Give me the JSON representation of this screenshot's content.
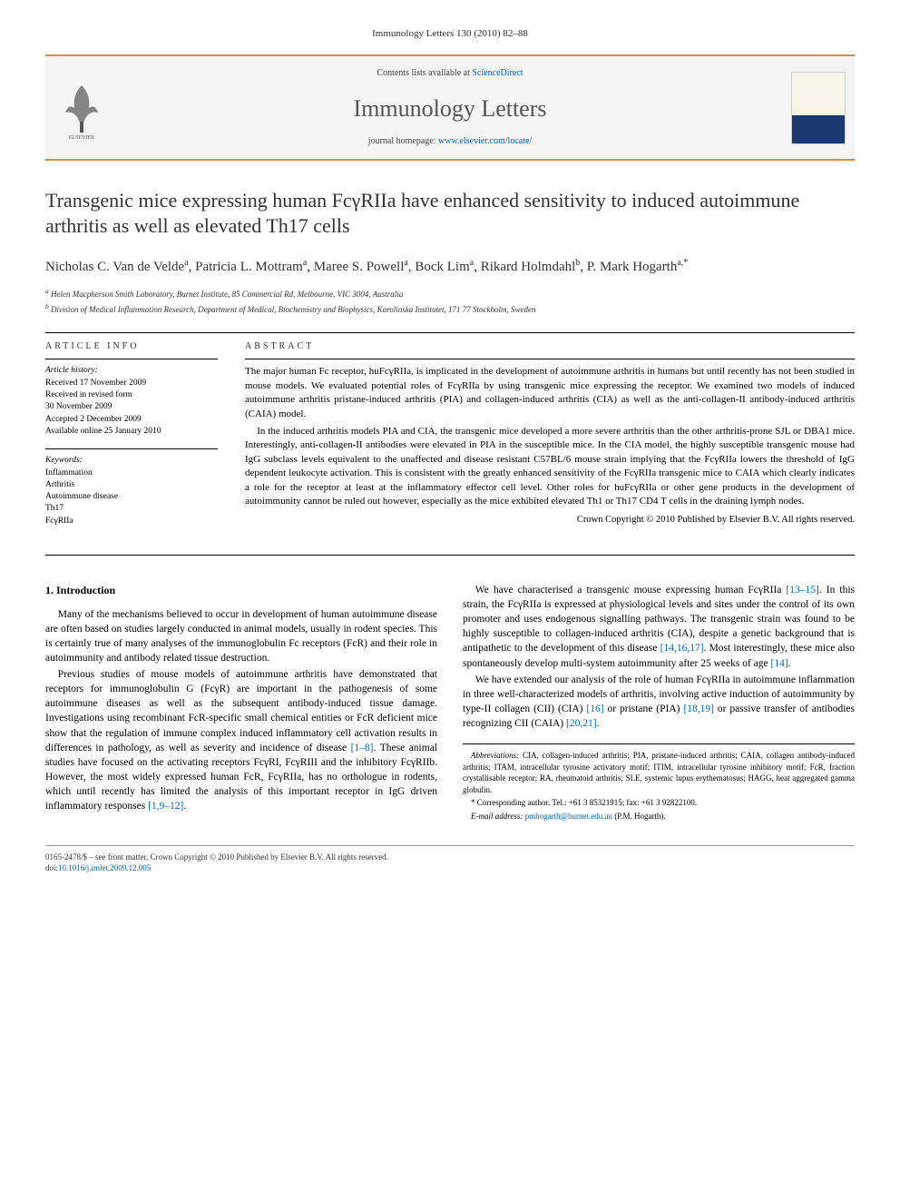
{
  "header": {
    "citation": "Immunology Letters 130 (2010) 82–88"
  },
  "banner": {
    "contents_prefix": "Contents lists available at ",
    "contents_link": "ScienceDirect",
    "journal": "Immunology Letters",
    "homepage_prefix": "journal homepage: ",
    "homepage_link": "www.elsevier.com/locate/"
  },
  "title": "Transgenic mice expressing human FcγRIIa have enhanced sensitivity to induced autoimmune arthritis as well as elevated Th17 cells",
  "authors_html": "Nicholas C. Van de Velde<sup>a</sup>, Patricia L. Mottram<sup>a</sup>, Maree S. Powell<sup>a</sup>, Bock Lim<sup>a</sup>, Rikard Holmdahl<sup>b</sup>, P. Mark Hogarth<sup>a,*</sup>",
  "affiliations": {
    "a": "Helen Macpherson Smith Laboratory, Burnet Institute, 85 Commercial Rd, Melbourne, VIC 3004, Australia",
    "b": "Division of Medical Inflammation Research, Department of Medical, Biochemistry and Biophysics, Karolinska Institutet, 171 77 Stockholm, Sweden"
  },
  "article_info": {
    "heading": "ARTICLE INFO",
    "history_label": "Article history:",
    "history": [
      "Received 17 November 2009",
      "Received in revised form",
      "30 November 2009",
      "Accepted 2 December 2009",
      "Available online 25 January 2010"
    ],
    "keywords_label": "Keywords:",
    "keywords": [
      "Inflammation",
      "Arthritis",
      "Autoimmune disease",
      "Th17",
      "FcγRIIa"
    ]
  },
  "abstract": {
    "heading": "ABSTRACT",
    "p1": "The major human Fc receptor, huFcγRIIa, is implicated in the development of autoimmune arthritis in humans but until recently has not been studied in mouse models. We evaluated potential roles of FcγRIIa by using transgenic mice expressing the receptor. We examined two models of induced autoimmune arthritis pristane-induced arthritis (PIA) and collagen-induced arthritis (CIA) as well as the anti-collagen-II antibody-induced arthritis (CAIA) model.",
    "p2": "In the induced arthritis models PIA and CIA, the transgenic mice developed a more severe arthritis than the other arthritis-prone SJL or DBA1 mice. Interestingly, anti-collagen-II antibodies were elevated in PIA in the susceptible mice. In the CIA model, the highly susceptible transgenic mouse had IgG subclass levels equivalent to the unaffected and disease resistant C57BL/6 mouse strain implying that the FcγRIIa lowers the threshold of IgG dependent leukocyte activation. This is consistent with the greatly enhanced sensitivity of the FcγRIIa transgenic mice to CAIA which clearly indicates a role for the receptor at least at the inflammatory effector cell level. Other roles for huFcγRIIa or other gene products in the development of autoimmunity cannot be ruled out however, especially as the mice exhibited elevated Th1 or Th17 CD4 T cells in the draining lymph nodes.",
    "copyright": "Crown Copyright © 2010 Published by Elsevier B.V. All rights reserved."
  },
  "intro": {
    "heading": "1. Introduction",
    "p1": "Many of the mechanisms believed to occur in development of human autoimmune disease are often based on studies largely conducted in animal models, usually in rodent species. This is certainly true of many analyses of the immunoglobulin Fc receptors (FcR) and their role in autoimmunity and antibody related tissue destruction.",
    "p2a": "Previous studies of mouse models of autoimmune arthritis have demonstrated that receptors for immunoglobulin G (FcγR) are important in the pathogenesis of some autoimmune diseases as well as the subsequent antibody-induced tissue damage. Investigations using recombinant FcR-specific small chemical enti",
    "p2b": "ties or FcR deficient mice show that the regulation of immune complex induced inflammatory cell activation results in differences in pathology, as well as severity and incidence of disease ",
    "p2c": ". These animal studies have focused on the activating receptors FcγRI, FcγRIII and the inhibitory FcγRIIb. However, the most widely expressed human FcR, FcγRIIa, has no orthologue in rodents, which until recently has limited the analysis of this important receptor in IgG driven inflammatory responses ",
    "p3a": "We have characterised a transgenic mouse expressing human FcγRIIa ",
    "p3b": ". In this strain, the FcγRIIa is expressed at physiological levels and sites under the control of its own promoter and uses endogenous signalling pathways. The transgenic strain was found to be highly susceptible to collagen-induced arthritis (CIA), despite a genetic background that is antipathetic to the development of this disease ",
    "p3c": ". Most interestingly, these mice also spontaneously develop multi-system autoimmunity after 25 weeks of age ",
    "p4a": "We have extended our analysis of the role of human FcγRIIa in autoimmune inflammation in three well-characterized models of arthritis, involving active induction of autoimmunity by type-II collagen (CII) (CIA) ",
    "p4b": " or pristane (PIA) ",
    "p4c": " or passive transfer of antibodies recognizing CII (CAIA) "
  },
  "refs": {
    "r1_8": "[1–8]",
    "r1_9_12": "[1,9–12]",
    "r13_15": "[13–15]",
    "r14_16_17": "[14,16,17]",
    "r14": "[14]",
    "r16": "[16]",
    "r18_19": "[18,19]",
    "r20_21": "[20,21]"
  },
  "footnotes": {
    "abbrev_label": "Abbreviations:",
    "abbrev": " CIA, collagen-induced arthritis; PIA, pristane-induced arthritis; CAIA, collagen antibody-induced arthritis; ITAM, intracellular tyrosine activatory motif; ITIM, intracellular tyrosine inhibitory motif; FcR, fraction crystallisable receptor; RA, rheumatoid arthritis; SLE, systemic lupus erythematosus; HAGG, heat aggregated gamma globulin.",
    "corr": "* Corresponding author. Tel.: +61 3 85321915; fax: +61 3 92822100.",
    "email_label": "E-mail address:",
    "email": "pmhogarth@burnet.edu.au",
    "email_suffix": " (P.M. Hogarth)."
  },
  "footer": {
    "line1": "0165-2478/$ – see front matter. Crown Copyright © 2010 Published by Elsevier B.V. All rights reserved.",
    "doi_prefix": "doi:",
    "doi": "10.1016/j.imlet.2009.12.005"
  },
  "colors": {
    "accent": "#e28b3f",
    "link": "#0066cc",
    "text": "#000000",
    "muted": "#555555"
  }
}
